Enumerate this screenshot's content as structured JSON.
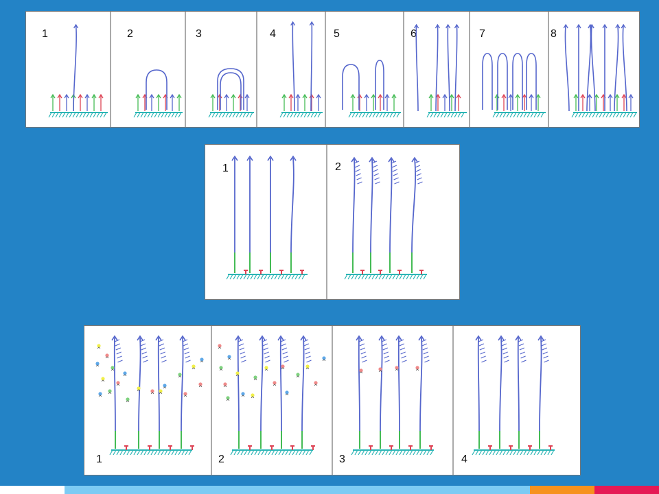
{
  "panels": {
    "top": {
      "labels": [
        "1",
        "2",
        "3",
        "4",
        "5",
        "6",
        "7",
        "8"
      ]
    },
    "middle": {
      "labels": [
        "1",
        "2"
      ]
    },
    "bottom": {
      "labels": [
        "1",
        "2",
        "3",
        "4"
      ]
    }
  },
  "colors": {
    "background": "#2383c6",
    "strand": "#5566cc",
    "dna_green": "#44bb55",
    "anchor_red": "#dd4455",
    "ground": "#2bb5b5",
    "bead_yellow": "#f2f04a",
    "bead_pink": "#f08a8a",
    "bead_blue": "#5fa8e8",
    "bead_green": "#7fd27f"
  }
}
